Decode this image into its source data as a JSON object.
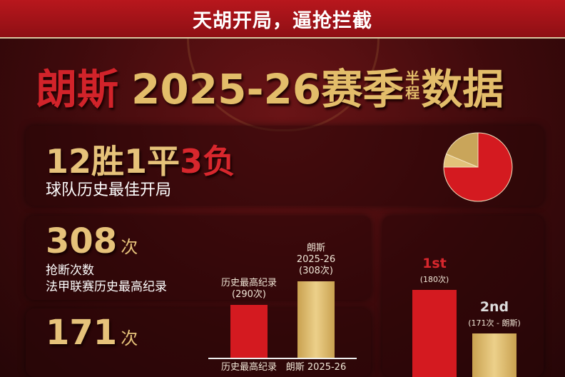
{
  "banner": {
    "text": "天胡开局，逼抢拦截"
  },
  "title": {
    "team": "朗斯",
    "season": "2025-26赛季",
    "small_top": "半",
    "small_bottom": "程",
    "suffix": "数据"
  },
  "record": {
    "wins": "12胜",
    "draws": "1平",
    "losses": "3负",
    "w_num": "12",
    "w_unit": "胜",
    "d_num": "1",
    "d_unit": "平",
    "l_num": "3",
    "l_unit": "负",
    "subtitle": "球队历史最佳开局"
  },
  "pie": {
    "type": "pie",
    "slices": [
      {
        "label": "胜",
        "value": 12,
        "color": "#d41a20"
      },
      {
        "label": "平",
        "value": 1,
        "color": "#e2c27a"
      },
      {
        "label": "负",
        "value": 3,
        "color": "#c9a55a"
      }
    ]
  },
  "tackles": {
    "number": "308",
    "unit": "次",
    "line1": "抢断次数",
    "line2": "法甲联赛历史最高纪录"
  },
  "chart_data": [
    {
      "type": "bar",
      "categories": [
        "历史最高纪录",
        "朗斯 2025-26"
      ],
      "values": [
        290,
        308
      ],
      "top_labels": [
        [
          "历史最高纪录",
          "(290次)"
        ],
        [
          "朗斯",
          "2025-26",
          "(308次)"
        ]
      ],
      "colors": [
        "#d41a20",
        "#d9b45e"
      ]
    },
    {
      "type": "bar",
      "categories": [
        "1st",
        "2nd"
      ],
      "values": [
        180,
        171
      ],
      "top_labels": [
        [
          "1st",
          "(180次)"
        ],
        [
          "2nd",
          "(171次 - 朗斯)"
        ]
      ],
      "colors": [
        "#d41a20",
        "#d9b45e"
      ]
    }
  ],
  "second": {
    "number": "171",
    "unit": "次"
  }
}
